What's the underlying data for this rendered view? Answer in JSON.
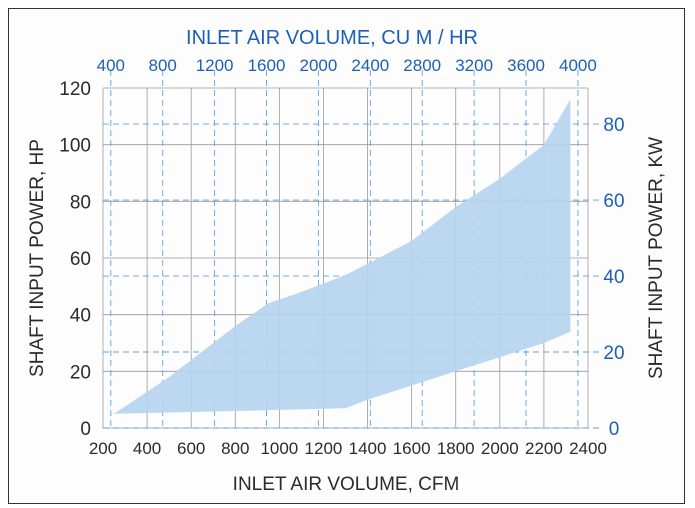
{
  "chart_data": {
    "type": "area",
    "title": "",
    "top_axis": {
      "label": "INLET AIR VOLUME, CU M / HR",
      "ticks": [
        400,
        800,
        1200,
        1600,
        2000,
        2400,
        2800,
        3200,
        3600,
        4000
      ]
    },
    "bottom_axis": {
      "label": "INLET AIR VOLUME, CFM",
      "ticks": [
        200,
        400,
        600,
        800,
        1000,
        1200,
        1400,
        1600,
        1800,
        2000,
        2200,
        2400
      ],
      "range": [
        200,
        2400
      ]
    },
    "left_axis": {
      "label": "SHAFT INPUT POWER,  HP",
      "ticks": [
        0,
        20,
        40,
        60,
        80,
        100,
        120
      ],
      "range": [
        0,
        120
      ]
    },
    "right_axis": {
      "label": "SHAFT INPUT POWER,  KW",
      "ticks": [
        0,
        20,
        40,
        60,
        80
      ]
    },
    "grid": true,
    "band_color": "#b5d5ef",
    "band_upper": [
      {
        "x": 250,
        "y": 5
      },
      {
        "x": 500,
        "y": 18
      },
      {
        "x": 800,
        "y": 36
      },
      {
        "x": 950,
        "y": 44
      },
      {
        "x": 1100,
        "y": 48
      },
      {
        "x": 1300,
        "y": 54
      },
      {
        "x": 1400,
        "y": 58
      },
      {
        "x": 1600,
        "y": 66
      },
      {
        "x": 1800,
        "y": 78
      },
      {
        "x": 2000,
        "y": 88
      },
      {
        "x": 2200,
        "y": 100
      },
      {
        "x": 2320,
        "y": 116
      }
    ],
    "band_lower": [
      {
        "x": 250,
        "y": 5
      },
      {
        "x": 800,
        "y": 6
      },
      {
        "x": 1300,
        "y": 7
      },
      {
        "x": 1400,
        "y": 10
      },
      {
        "x": 1600,
        "y": 15
      },
      {
        "x": 1800,
        "y": 20
      },
      {
        "x": 2000,
        "y": 25
      },
      {
        "x": 2200,
        "y": 30
      },
      {
        "x": 2320,
        "y": 34
      }
    ]
  }
}
